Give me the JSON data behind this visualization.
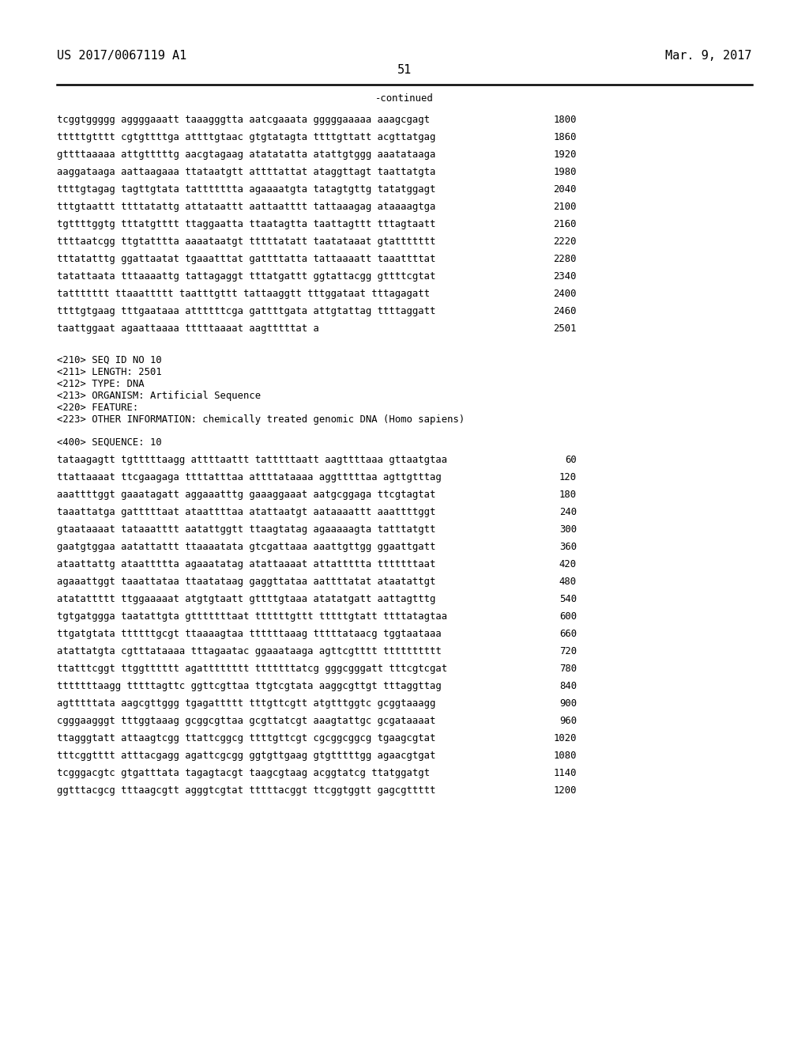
{
  "bg_color": "#ffffff",
  "header_left": "US 2017/0067119 A1",
  "header_right": "Mar. 9, 2017",
  "page_number": "51",
  "continued_text": "-continued",
  "font_family": "monospace",
  "font_size_header": 11,
  "font_size_body": 8.8,
  "font_size_meta": 8.8,
  "sequences_part1": [
    [
      "tcggtggggg aggggaaatt taaagggtta aatcgaaata gggggaaaaa aaagcgagt",
      "1800"
    ],
    [
      "tttttgtttt cgtgttttga attttgtaac gtgtatagta ttttgttatt acgttatgag",
      "1860"
    ],
    [
      "gttttaaaaa attgtttttg aacgtagaag atatatatta atattgtggg aaatataaga",
      "1920"
    ],
    [
      "aaggataaga aattaagaaa ttataatgtt attttattat ataggttagt taattatgta",
      "1980"
    ],
    [
      "ttttgtagag tagttgtata tattttttta agaaaatgta tatagtgttg tatatggagt",
      "2040"
    ],
    [
      "tttgtaattt ttttatattg attataattt aattaatttt tattaaagag ataaaagtga",
      "2100"
    ],
    [
      "tgttttggtg tttatgtttt ttaggaatta ttaatagtta taattagttt tttagtaatt",
      "2160"
    ],
    [
      "ttttaatcgg ttgtatttta aaaataatgt tttttatatt taatataaat gtattttttt",
      "2220"
    ],
    [
      "tttatatttg ggattaatat tgaaatttat gattttatta tattaaaatt taaattttat",
      "2280"
    ],
    [
      "tatattaata tttaaaattg tattagaggt tttatgattt ggtattacgg gttttcgtat",
      "2340"
    ],
    [
      "tattttttt ttaaattttt taatttgttt tattaaggtt tttggataat tttagagatt",
      "2400"
    ],
    [
      "ttttgtgaag tttgaataaa attttttcga gattttgata attgtattag ttttaggatt",
      "2460"
    ],
    [
      "taattggaat agaattaaaa tttttaaaat aagtttttat a",
      "2501"
    ]
  ],
  "metadata_lines": [
    "<210> SEQ ID NO 10",
    "<211> LENGTH: 2501",
    "<212> TYPE: DNA",
    "<213> ORGANISM: Artificial Sequence",
    "<220> FEATURE:",
    "<223> OTHER INFORMATION: chemically treated genomic DNA (Homo sapiens)"
  ],
  "seq400_label": "<400> SEQUENCE: 10",
  "sequences_part2": [
    [
      "tataagagtt tgtttttaagg attttaattt tatttttaatt aagttttaaa gttaatgtaa",
      "60"
    ],
    [
      "ttattaaaat ttcgaagaga ttttatttaa attttataaaa aggtttttaa agttgtttag",
      "120"
    ],
    [
      "aaattttggt gaaatagatt aggaaatttg gaaaggaaat aatgcggaga ttcgtagtat",
      "180"
    ],
    [
      "taaattatga gatttttaat ataattttaa atattaatgt aataaaattt aaattttggt",
      "240"
    ],
    [
      "gtaataaaat tataaatttt aatattggtt ttaagtatag agaaaaagta tatttatgtt",
      "300"
    ],
    [
      "gaatgtggaa aatattattt ttaaaatata gtcgattaaa aaattgttgg ggaattgatt",
      "360"
    ],
    [
      "ataattattg ataattttta agaaatatag atattaaaat attattttta tttttttaat",
      "420"
    ],
    [
      "agaaattggt taaattataa ttaatataag gaggttataa aattttatat ataatattgt",
      "480"
    ],
    [
      "atatattttt ttggaaaaat atgtgtaatt gttttgtaaa atatatgatt aattagtttg",
      "540"
    ],
    [
      "tgtgatggga taatattgta gtttttttaat ttttttgttt tttttgtatt ttttatagtaa",
      "600"
    ],
    [
      "ttgatgtata ttttttgcgt ttaaaagtaa ttttttaaag tttttataacg tggtaataaa",
      "660"
    ],
    [
      "atattatgta cgtttataaaa tttagaatac ggaaataaga agttcgtttt tttttttttt",
      "720"
    ],
    [
      "ttatttcggt ttggtttttt agatttttttt tttttttatcg gggcgggatt tttcgtcgat",
      "780"
    ],
    [
      "tttttttaagg tttttagttc ggttcgttaa ttgtcgtata aaggcgttgt tttaggttag",
      "840"
    ],
    [
      "agtttttata aagcgttggg tgagattttt tttgttcgtt atgtttggtc gcggtaaagg",
      "900"
    ],
    [
      "cgggaagggt tttggtaaag gcggcgttaa gcgttatcgt aaagtattgc gcgataaaat",
      "960"
    ],
    [
      "ttagggtatt attaagtcgg ttattcggcg ttttgttcgt cgcggcggcg tgaagcgtat",
      "1020"
    ],
    [
      "tttcggtttt atttacgagg agattcgcgg ggtgttgaag gtgtttttgg agaacgtgat",
      "1080"
    ],
    [
      "tcgggacgtc gtgatttata tagagtacgt taagcgtaag acggtatcg ttatggatgt",
      "1140"
    ],
    [
      "ggtttacgcg tttaagcgtt agggtcgtat tttttacggt ttcggtggtt gagcgttttt",
      "1200"
    ]
  ]
}
